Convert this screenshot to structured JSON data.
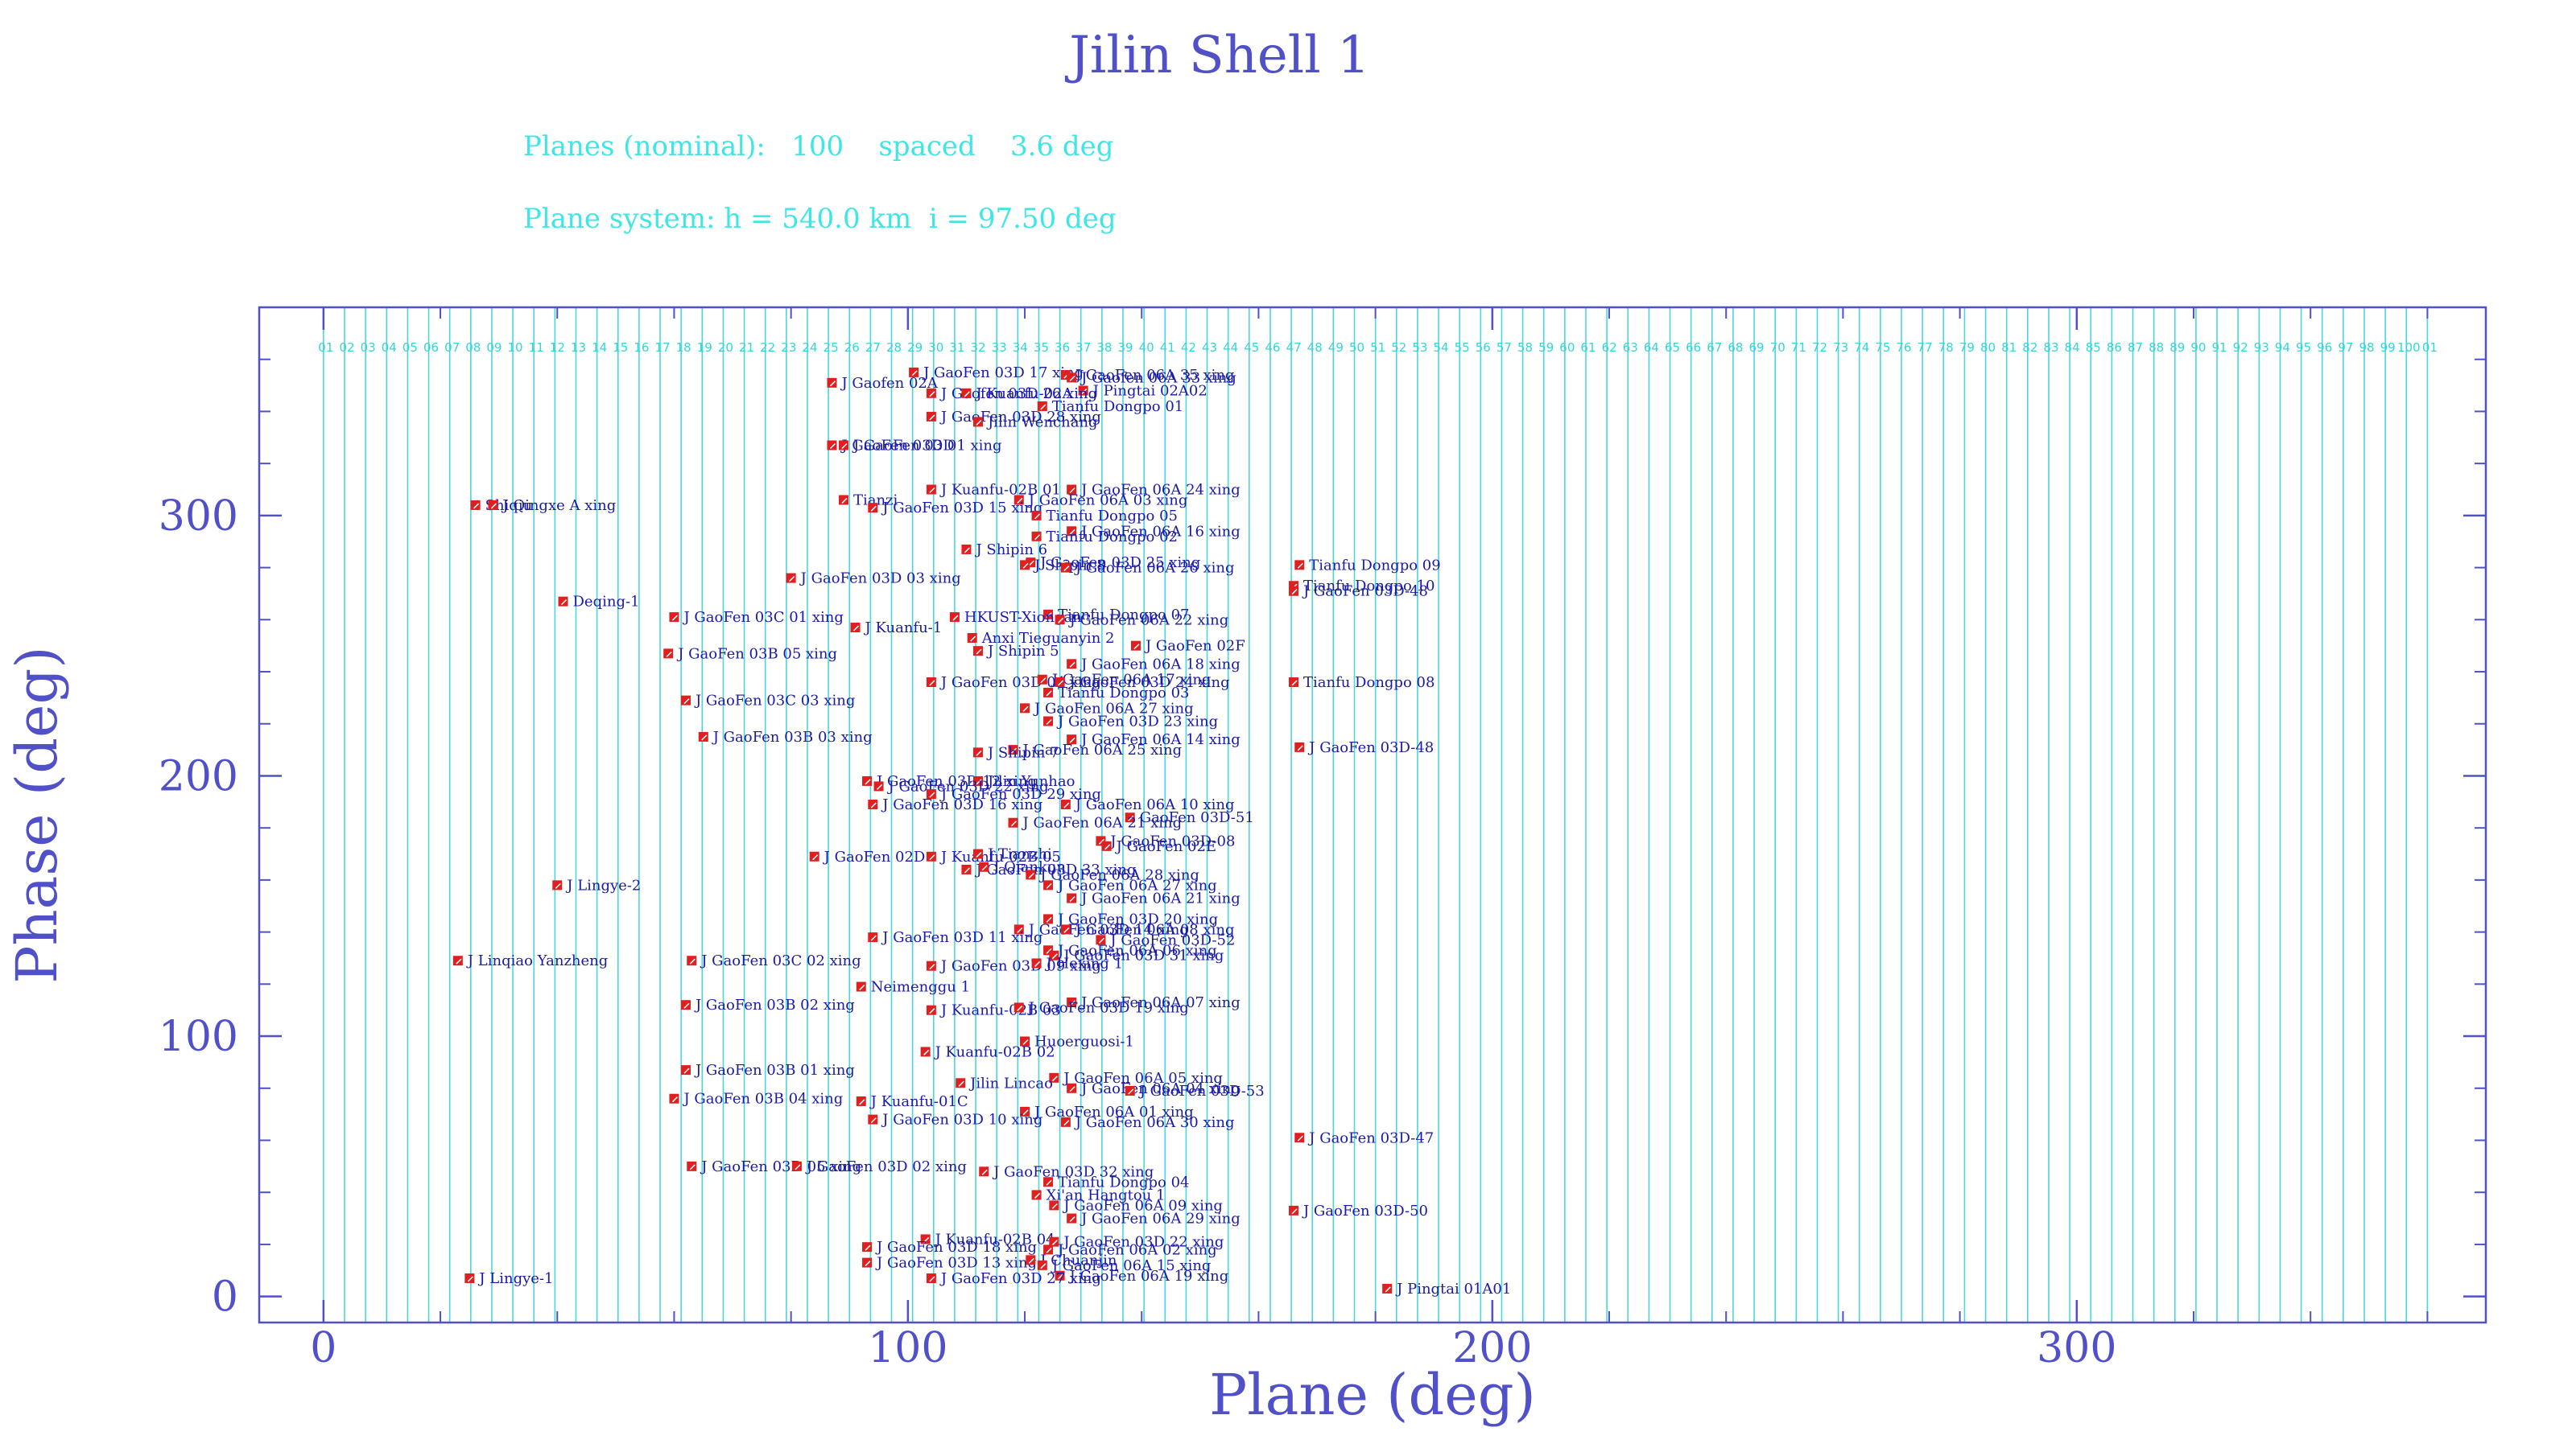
{
  "colors": {
    "axis": "#5050c8",
    "plane_lines": "#4ad6e0",
    "subtitle": "#3ee6e6",
    "marker_fill": "#e02020",
    "marker_border": "#ffffff",
    "label": "#1a1aa8"
  },
  "chart_data": {
    "type": "scatter",
    "title": "Jilin Shell 1",
    "subtitle_lines": [
      "Planes (nominal):   100    spaced    3.6 deg",
      "Plane system: h = 540.0 km  i = 97.50 deg"
    ],
    "xlabel": "Plane (deg)",
    "ylabel": "Phase (deg)",
    "xlim": [
      -11,
      370
    ],
    "ylim": [
      -10,
      380
    ],
    "x_ticks": [
      "0",
      "100",
      "200",
      "300"
    ],
    "y_ticks": [
      "0",
      "100",
      "200",
      "300"
    ],
    "grid": false,
    "plane_count": 100,
    "plane_spacing": 3.6,
    "plane_labels": [
      "01",
      "02",
      "03",
      "04",
      "05",
      "06",
      "07",
      "08",
      "09",
      "10",
      "11",
      "12",
      "13",
      "14",
      "15",
      "16",
      "17",
      "18",
      "19",
      "20",
      "21",
      "22",
      "23",
      "24",
      "25",
      "26",
      "27",
      "28",
      "29",
      "30",
      "31",
      "32",
      "33",
      "34",
      "35",
      "36",
      "37",
      "38",
      "39",
      "40",
      "41",
      "42",
      "43",
      "44",
      "45",
      "46",
      "47",
      "48",
      "49",
      "50",
      "51",
      "52",
      "53",
      "54",
      "55",
      "56",
      "57",
      "58",
      "59",
      "60",
      "61",
      "62",
      "63",
      "64",
      "65",
      "66",
      "67",
      "68",
      "69",
      "70",
      "71",
      "72",
      "73",
      "74",
      "75",
      "76",
      "77",
      "78",
      "79",
      "80",
      "81",
      "82",
      "83",
      "84",
      "85",
      "86",
      "87",
      "88",
      "89",
      "90",
      "91",
      "92",
      "93",
      "94",
      "95",
      "96",
      "97",
      "98",
      "99",
      "100",
      "01"
    ],
    "points": [
      {
        "label": "J GaoFen 03D 17 xing",
        "x": 101,
        "y": 355
      },
      {
        "label": "J GaoFen 06A 35 xing",
        "x": 127,
        "y": 354
      },
      {
        "label": "J Gaofen 06A 33 xing",
        "x": 128,
        "y": 353
      },
      {
        "label": "J Pingtai 02A02",
        "x": 130,
        "y": 348
      },
      {
        "label": "J Gaofen 02A",
        "x": 87,
        "y": 351
      },
      {
        "label": "J Gaofen 03D 26 xing",
        "x": 104,
        "y": 347
      },
      {
        "label": "J Kuanfu-02A",
        "x": 110,
        "y": 347
      },
      {
        "label": "Tianfu Dongpo 01",
        "x": 123,
        "y": 342
      },
      {
        "label": "J GaoFen 03D 28 xing",
        "x": 104,
        "y": 338
      },
      {
        "label": "Jilin Wenchang",
        "x": 112,
        "y": 336
      },
      {
        "label": "J GaoFen 03D 01 xing",
        "x": 87,
        "y": 327
      },
      {
        "label": "J GaoFen 03D",
        "x": 89,
        "y": 327
      },
      {
        "label": "J Kuanfu-02B 01",
        "x": 104,
        "y": 310
      },
      {
        "label": "J GaoFen 06A 24 xing",
        "x": 128,
        "y": 310
      },
      {
        "label": "J GaoFen 06A 03 xing",
        "x": 119,
        "y": 306
      },
      {
        "label": "Tianzi",
        "x": 89,
        "y": 306
      },
      {
        "label": "J GaoFen 03D 15 xing",
        "x": 94,
        "y": 303
      },
      {
        "label": "Shiqiu",
        "x": 26,
        "y": 304
      },
      {
        "label": "J Qingxe A xing",
        "x": 29,
        "y": 304
      },
      {
        "label": "Tianfu Dongpo 05",
        "x": 122,
        "y": 300
      },
      {
        "label": "J GaoFen 06A 16 xing",
        "x": 128,
        "y": 294
      },
      {
        "label": "Tianfu Dongpo 02",
        "x": 122,
        "y": 292
      },
      {
        "label": "J Shipin 6",
        "x": 110,
        "y": 287
      },
      {
        "label": "J GaoFen 03D 25 xing",
        "x": 121,
        "y": 282
      },
      {
        "label": "J Shipin 8",
        "x": 120,
        "y": 281
      },
      {
        "label": "J GaoFen 06A 26 xing",
        "x": 127,
        "y": 280
      },
      {
        "label": "Tianfu Dongpo 09",
        "x": 167,
        "y": 281
      },
      {
        "label": "J GaoFen 03D 03 xing",
        "x": 80,
        "y": 276
      },
      {
        "label": "Tianfu Dongpo 10",
        "x": 166,
        "y": 273
      },
      {
        "label": "J GaoFen 03D-48",
        "x": 166,
        "y": 271
      },
      {
        "label": "Deqing-1",
        "x": 41,
        "y": 267
      },
      {
        "label": "Tianfu Dongpo 07",
        "x": 124,
        "y": 262
      },
      {
        "label": "HKUST-Xiongan",
        "x": 108,
        "y": 261
      },
      {
        "label": "J GaoFen 06A 22 xing",
        "x": 126,
        "y": 260
      },
      {
        "label": "J GaoFen 03C 01 xing",
        "x": 60,
        "y": 261
      },
      {
        "label": "J Kuanfu-1",
        "x": 91,
        "y": 257
      },
      {
        "label": "Anxi Tieguanyin 2",
        "x": 111,
        "y": 253
      },
      {
        "label": "J GaoFen 02F",
        "x": 139,
        "y": 250
      },
      {
        "label": "J Shipin 5",
        "x": 112,
        "y": 248
      },
      {
        "label": "J GaoFen 03B 05 xing",
        "x": 59,
        "y": 247
      },
      {
        "label": "J GaoFen 06A 18 xing",
        "x": 128,
        "y": 243
      },
      {
        "label": "J GaoFen 03D 04 xing",
        "x": 104,
        "y": 236
      },
      {
        "label": "J GaoFen 06A 17 xing",
        "x": 123,
        "y": 237
      },
      {
        "label": "J GaoFen 03D 24 xing",
        "x": 126,
        "y": 236
      },
      {
        "label": "Tianfu Dongpo 08",
        "x": 166,
        "y": 236
      },
      {
        "label": "Tianfu Dongpo 03",
        "x": 124,
        "y": 232
      },
      {
        "label": "J GaoFen 03C 03 xing",
        "x": 62,
        "y": 229
      },
      {
        "label": "J GaoFen 06A 27 xing",
        "x": 120,
        "y": 226
      },
      {
        "label": "J GaoFen 03D 23 xing",
        "x": 124,
        "y": 221
      },
      {
        "label": "J GaoFen 03B 03 xing",
        "x": 65,
        "y": 215
      },
      {
        "label": "J GaoFen 06A 14 xing",
        "x": 128,
        "y": 214
      },
      {
        "label": "J GaoFen 06A 25 xing",
        "x": 118,
        "y": 210
      },
      {
        "label": "J Shipin 7",
        "x": 112,
        "y": 209
      },
      {
        "label": "J GaoFen 03D-48",
        "x": 167,
        "y": 211
      },
      {
        "label": "J GaoFen 03D 12 xing",
        "x": 93,
        "y": 198
      },
      {
        "label": "Jilin Yunhao",
        "x": 112,
        "y": 198
      },
      {
        "label": "J GaoFen 03D 22 xing",
        "x": 95,
        "y": 196
      },
      {
        "label": "J GaoFen 03D 29 xing",
        "x": 104,
        "y": 193
      },
      {
        "label": "J GaoFen 03D 16 xing",
        "x": 94,
        "y": 189
      },
      {
        "label": "J GaoFen 06A 10 xing",
        "x": 127,
        "y": 189
      },
      {
        "label": "GaoFen 03D-51",
        "x": 138,
        "y": 184
      },
      {
        "label": "J GaoFen 06A 21 xing",
        "x": 118,
        "y": 182
      },
      {
        "label": "J GaoFen 03D-08",
        "x": 133,
        "y": 175
      },
      {
        "label": "J GaoFen 02E",
        "x": 134,
        "y": 173
      },
      {
        "label": "J GaoFen 02D",
        "x": 84,
        "y": 169
      },
      {
        "label": "J Kuanfu-02B 05",
        "x": 104,
        "y": 169
      },
      {
        "label": "J Tianzhi",
        "x": 112,
        "y": 170
      },
      {
        "label": "J GaoFen 03D 33 xing",
        "x": 110,
        "y": 164
      },
      {
        "label": "J Qiankun",
        "x": 113,
        "y": 165
      },
      {
        "label": "J GaoFen 06A 28 xing",
        "x": 121,
        "y": 162
      },
      {
        "label": "J GaoFen 06A 27 xing",
        "x": 124,
        "y": 158
      },
      {
        "label": "J Lingye-2",
        "x": 40,
        "y": 158
      },
      {
        "label": "J GaoFen 06A 21 xing",
        "x": 128,
        "y": 153
      },
      {
        "label": "J GaoFen 03D 20 xing",
        "x": 124,
        "y": 145
      },
      {
        "label": "J GaoFen 03D 14 xing",
        "x": 119,
        "y": 141
      },
      {
        "label": "J GaoFen 06A 08 xing",
        "x": 127,
        "y": 141
      },
      {
        "label": "J GaoFen 03D 11 xing",
        "x": 94,
        "y": 138
      },
      {
        "label": "J GaoFen 03D-52",
        "x": 133,
        "y": 137
      },
      {
        "label": "J GaoFen 06A 06 xing",
        "x": 124,
        "y": 133
      },
      {
        "label": "J GaoFen 03D 31 xing",
        "x": 125,
        "y": 131
      },
      {
        "label": "J Linqiao Yanzheng",
        "x": 23,
        "y": 129
      },
      {
        "label": "J GaoFen 03C 02 xing",
        "x": 63,
        "y": 129
      },
      {
        "label": "J GaoFen 03D 09 xing",
        "x": 104,
        "y": 127
      },
      {
        "label": "J Hexing 1",
        "x": 122,
        "y": 128
      },
      {
        "label": "Neimenggu 1",
        "x": 92,
        "y": 119
      },
      {
        "label": "J GaoFen 06A 07 xing",
        "x": 128,
        "y": 113
      },
      {
        "label": "J GaoFen 03B 02 xing",
        "x": 62,
        "y": 112
      },
      {
        "label": "J Kuanfu-02B 03",
        "x": 104,
        "y": 110
      },
      {
        "label": "J GaoFen 03D 19 xing",
        "x": 119,
        "y": 111
      },
      {
        "label": "Huoerguosi-1",
        "x": 120,
        "y": 98
      },
      {
        "label": "J Kuanfu-02B 02",
        "x": 103,
        "y": 94
      },
      {
        "label": "J GaoFen 03B 01 xing",
        "x": 62,
        "y": 87
      },
      {
        "label": "J GaoFen 06A 05 xing",
        "x": 125,
        "y": 84
      },
      {
        "label": "Jilin Lincao",
        "x": 109,
        "y": 82
      },
      {
        "label": "J GaoFen 06A 04 xing",
        "x": 128,
        "y": 80
      },
      {
        "label": "J GaoFen 03D-53",
        "x": 138,
        "y": 79
      },
      {
        "label": "J GaoFen 03B 04 xing",
        "x": 60,
        "y": 76
      },
      {
        "label": "J Kuanfu-01C",
        "x": 92,
        "y": 75
      },
      {
        "label": "J GaoFen 06A 01 xing",
        "x": 120,
        "y": 71
      },
      {
        "label": "J GaoFen 03D 10 xing",
        "x": 94,
        "y": 68
      },
      {
        "label": "J GaoFen 06A 30 xing",
        "x": 127,
        "y": 67
      },
      {
        "label": "J GaoFen 03D-47",
        "x": 167,
        "y": 61
      },
      {
        "label": "J GaoFen 03D 05 xing",
        "x": 63,
        "y": 50
      },
      {
        "label": "J GaoFen 03D 02 xing",
        "x": 81,
        "y": 50
      },
      {
        "label": "J GaoFen 03D 32 xing",
        "x": 113,
        "y": 48
      },
      {
        "label": "Tianfu Dongpo 04",
        "x": 124,
        "y": 44
      },
      {
        "label": "Xi'an Hangtou 1",
        "x": 122,
        "y": 39
      },
      {
        "label": "J GaoFen 06A 09 xing",
        "x": 125,
        "y": 35
      },
      {
        "label": "J GaoFen 03D-50",
        "x": 166,
        "y": 33
      },
      {
        "label": "J GaoFen 06A 29 xing",
        "x": 128,
        "y": 30
      },
      {
        "label": "J Kuanfu-02B 04",
        "x": 103,
        "y": 22
      },
      {
        "label": "J GaoFen 03D 22 xing",
        "x": 125,
        "y": 21
      },
      {
        "label": "J GaoFen 03D 18 xing",
        "x": 93,
        "y": 19
      },
      {
        "label": "J GaoFen 06A 02 xing",
        "x": 124,
        "y": 18
      },
      {
        "label": "J GaoFen 03D 13 xing",
        "x": 93,
        "y": 13
      },
      {
        "label": "J Chuanjin",
        "x": 121,
        "y": 14
      },
      {
        "label": "J GaoFen 06A 15 xing",
        "x": 123,
        "y": 12
      },
      {
        "label": "J GaoFen 06A 19 xing",
        "x": 126,
        "y": 8
      },
      {
        "label": "J Lingye-1",
        "x": 25,
        "y": 7
      },
      {
        "label": "J GaoFen 03D 27 xing",
        "x": 104,
        "y": 7
      },
      {
        "label": "J Pingtai 01A01",
        "x": 182,
        "y": 3
      }
    ]
  }
}
